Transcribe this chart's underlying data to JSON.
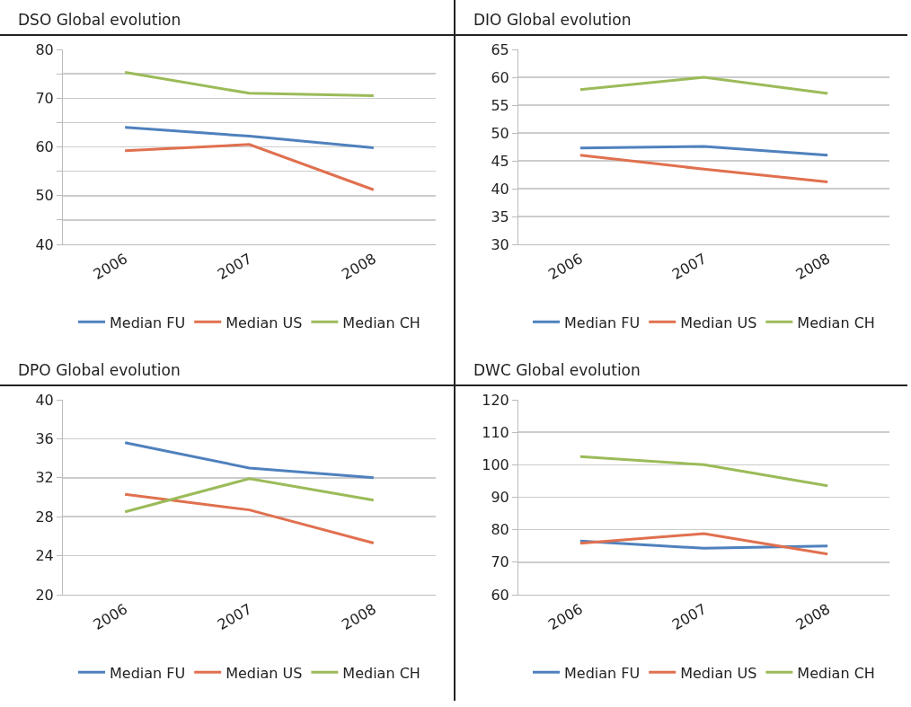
{
  "chart_data": [
    {
      "type": "line",
      "title": "DSO Global evolution",
      "categories": [
        "2006",
        "2007",
        "2008"
      ],
      "ylim": [
        40,
        80
      ],
      "yticks": [
        40,
        {
          "value": 45,
          "label": null
        },
        50,
        {
          "value": 55,
          "label": null
        },
        60,
        {
          "value": 65,
          "label": null
        },
        70,
        {
          "value": 75,
          "label": null
        },
        80
      ],
      "grid": "y",
      "legend": "bottom",
      "marker": "none",
      "line_style": "solid",
      "series": [
        {
          "name": "Median FU",
          "color": "#4f81bd",
          "values": [
            64,
            62.2,
            59.8
          ]
        },
        {
          "name": "Median US",
          "color": "#e0704f",
          "values": [
            59.2,
            60.5,
            51.2
          ]
        },
        {
          "name": "Median CH",
          "color": "#9bbb59",
          "values": [
            75.3,
            71,
            70.5
          ]
        }
      ]
    },
    {
      "type": "line",
      "title": "DIO Global evolution",
      "categories": [
        "2006",
        "2007",
        "2008"
      ],
      "ylim": [
        30,
        65
      ],
      "yticks": [
        30,
        35,
        40,
        45,
        50,
        55,
        60,
        65
      ],
      "grid": "y",
      "legend": "bottom",
      "marker": "none",
      "line_style": "solid",
      "series": [
        {
          "name": "Median FU",
          "color": "#4f81bd",
          "values": [
            47.3,
            47.6,
            46
          ]
        },
        {
          "name": "Median US",
          "color": "#e0704f",
          "values": [
            46,
            43.5,
            41.2
          ]
        },
        {
          "name": "Median CH",
          "color": "#9bbb59",
          "values": [
            57.8,
            60,
            57.1
          ]
        }
      ]
    },
    {
      "type": "line",
      "title": "DPO Global evolution",
      "categories": [
        "2006",
        "2007",
        "2008"
      ],
      "ylim": [
        20,
        40
      ],
      "yticks": [
        20,
        24,
        28,
        32,
        36,
        40
      ],
      "grid": "y",
      "legend": "bottom",
      "marker": "none",
      "line_style": "solid",
      "series": [
        {
          "name": "Median FU",
          "color": "#4f81bd",
          "values": [
            35.6,
            33,
            32
          ]
        },
        {
          "name": "Median US",
          "color": "#e0704f",
          "values": [
            30.3,
            28.7,
            25.3
          ]
        },
        {
          "name": "Median CH",
          "color": "#9bbb59",
          "values": [
            28.5,
            31.9,
            29.7
          ]
        }
      ]
    },
    {
      "type": "line",
      "title": "DWC Global evolution",
      "categories": [
        "2006",
        "2007",
        "2008"
      ],
      "ylim": [
        60,
        120
      ],
      "yticks": [
        60,
        70,
        80,
        90,
        100,
        110,
        120
      ],
      "grid": "y",
      "legend": "bottom",
      "marker": "none",
      "line_style": "solid",
      "series": [
        {
          "name": "Median FU",
          "color": "#4f81bd",
          "values": [
            76.5,
            74.3,
            75
          ]
        },
        {
          "name": "Median US",
          "color": "#e0704f",
          "values": [
            75.8,
            78.8,
            72.5
          ]
        },
        {
          "name": "Median CH",
          "color": "#9bbb59",
          "values": [
            102.5,
            100,
            93.5
          ]
        }
      ]
    }
  ]
}
